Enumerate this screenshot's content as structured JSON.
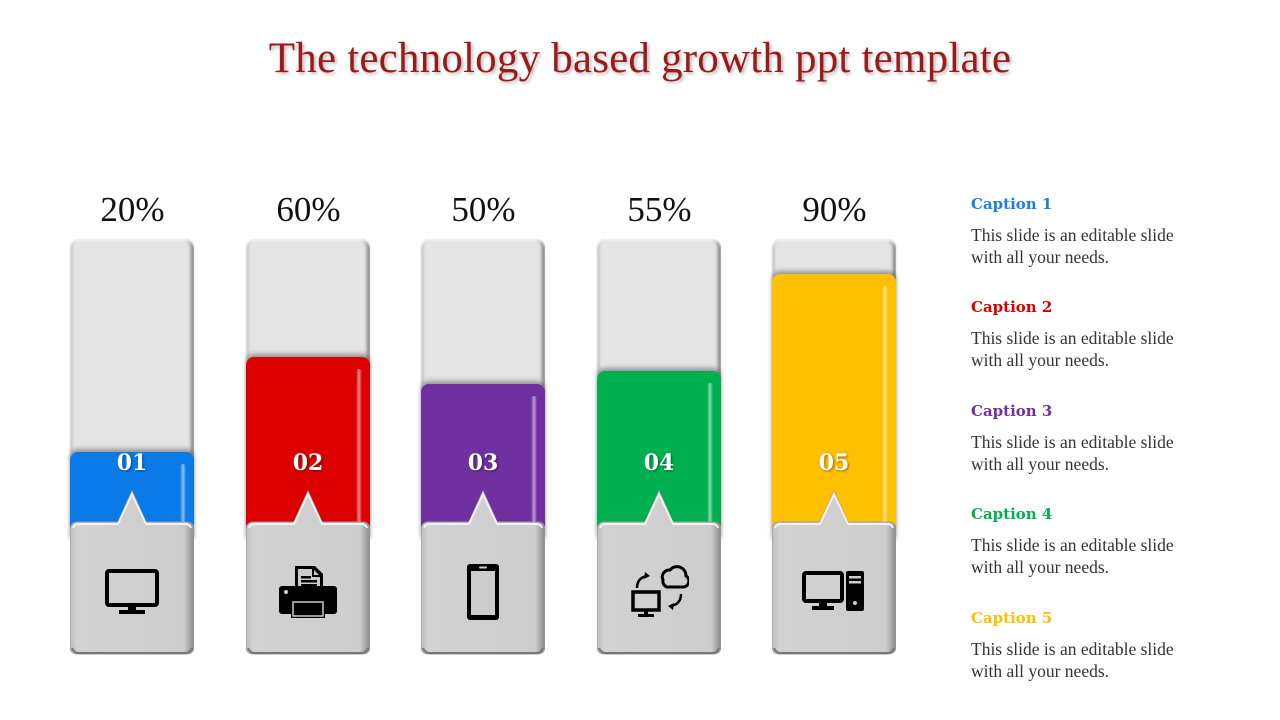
{
  "title": "The technology based growth ppt template",
  "chart_data": {
    "type": "bar",
    "title": "The technology based growth ppt template",
    "categories": [
      "01",
      "02",
      "03",
      "04",
      "05"
    ],
    "values": [
      20,
      60,
      50,
      55,
      90
    ],
    "value_labels": [
      "20%",
      "60%",
      "50%",
      "55%",
      "90%"
    ],
    "ylim": [
      0,
      100
    ],
    "unit": "%",
    "colors": [
      "#0a7ae8",
      "#dd0000",
      "#7030a0",
      "#00b050",
      "#ffc000"
    ],
    "icons": [
      "monitor-icon",
      "printer-icon",
      "smartphone-icon",
      "cloud-sync-computer-icon",
      "desktop-computer-icon"
    ]
  },
  "bars": [
    {
      "label": "20%",
      "number": "01",
      "value": 20,
      "color": "#0a7ae8",
      "icon": "monitor-icon"
    },
    {
      "label": "60%",
      "number": "02",
      "value": 60,
      "color": "#dd0000",
      "icon": "printer-icon"
    },
    {
      "label": "50%",
      "number": "03",
      "value": 50,
      "color": "#7030a0",
      "icon": "smartphone-icon"
    },
    {
      "label": "55%",
      "number": "04",
      "value": 55,
      "color": "#00b050",
      "icon": "cloud-sync-computer-icon"
    },
    {
      "label": "90%",
      "number": "05",
      "value": 90,
      "color": "#ffc000",
      "icon": "desktop-computer-icon"
    }
  ],
  "captions": [
    {
      "title": "Caption 1",
      "text": "This slide is an editable slide with all your needs.",
      "color": "#1a7fe0"
    },
    {
      "title": "Caption 2",
      "text": "This slide is an editable slide with all your needs.",
      "color": "#d40000"
    },
    {
      "title": "Caption 3",
      "text": "This slide is an editable slide with all your needs.",
      "color": "#7030a0"
    },
    {
      "title": "Caption 4",
      "text": "This slide is an editable slide with all your needs.",
      "color": "#00b050"
    },
    {
      "title": "Caption 5",
      "text": "This slide is an editable slide with all your needs.",
      "color": "#ffc000"
    }
  ]
}
